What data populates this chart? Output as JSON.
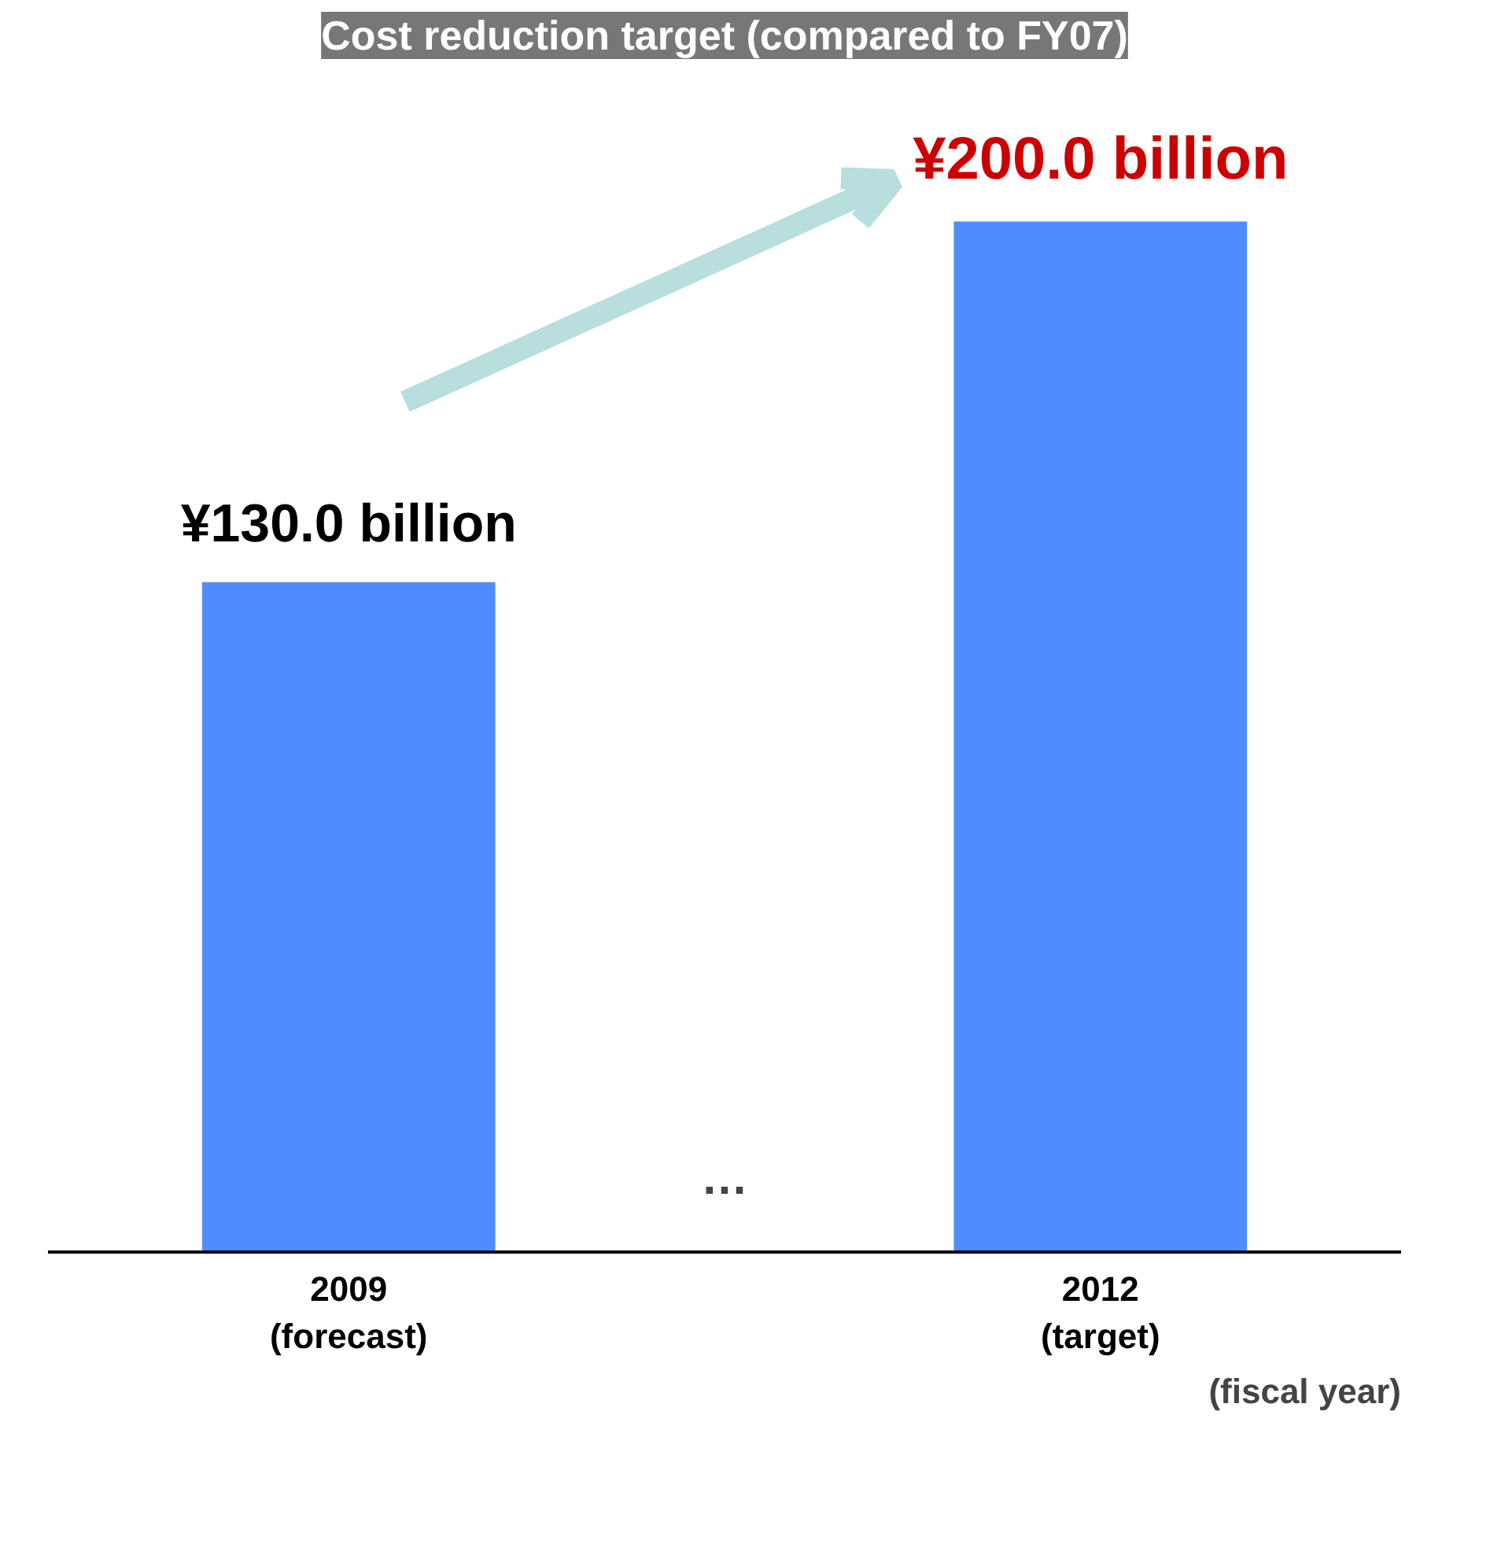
{
  "chart_data": {
    "type": "bar",
    "title": "Cost reduction target (compared to FY07)",
    "categories": [
      "2009\n(forecast)",
      "2012\n(target)"
    ],
    "values": [
      130.0,
      200.0
    ],
    "value_labels": [
      "¥130.0 billion",
      "¥200.0 billion"
    ],
    "color": "#4f8cff",
    "xlabel": "(fiscal year)",
    "annotations": [
      "…"
    ]
  }
}
